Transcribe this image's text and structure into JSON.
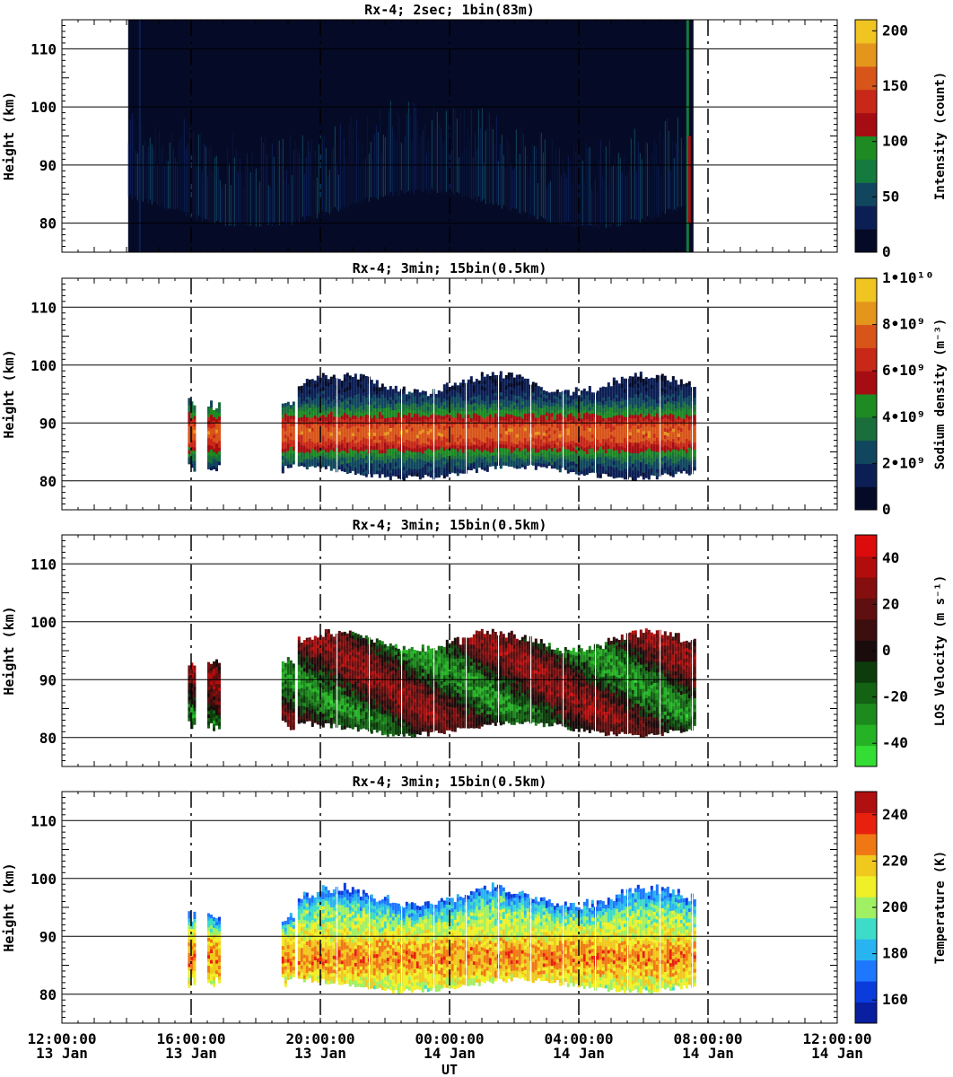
{
  "x_axis": {
    "label": "UT",
    "ticks": [
      {
        "time": "12:00:00",
        "date": "13 Jan"
      },
      {
        "time": "16:00:00",
        "date": "13 Jan"
      },
      {
        "time": "20:00:00",
        "date": "13 Jan"
      },
      {
        "time": "00:00:00",
        "date": "14 Jan"
      },
      {
        "time": "04:00:00",
        "date": "14 Jan"
      },
      {
        "time": "08:00:00",
        "date": "14 Jan"
      },
      {
        "time": "12:00:00",
        "date": "14 Jan"
      }
    ]
  },
  "chart_data": [
    {
      "type": "heatmap",
      "title": "Rx-4;  2sec; 1bin(83m)",
      "ylabel": "Height (km)",
      "ylim": [
        75,
        115
      ],
      "yticks": [
        "80",
        "90",
        "100",
        "110"
      ],
      "xlim_hours": [
        12,
        36
      ],
      "data_extent_hours": [
        14.05,
        31.55
      ],
      "colorbar": {
        "label": "Intensity (count)",
        "range": [
          0,
          210
        ],
        "ticks": [
          "0",
          "50",
          "100",
          "150",
          "200"
        ],
        "colors": [
          "#050b26",
          "#0c1f55",
          "#10475e",
          "#157a3d",
          "#1d8a22",
          "#a50d12",
          "#c72818",
          "#d8551a",
          "#e4961c",
          "#f0c421"
        ]
      }
    },
    {
      "type": "heatmap",
      "title": "Rx-4; 3min; 15bin(0.5km)",
      "ylabel": "Height (km)",
      "ylim": [
        75,
        115
      ],
      "yticks": [
        "80",
        "90",
        "100",
        "110"
      ],
      "xlim_hours": [
        12,
        36
      ],
      "data_extent_hours": [
        [
          15.9,
          16.1
        ],
        [
          16.5,
          16.9
        ],
        [
          18.8,
          19.2
        ],
        [
          19.3,
          31.6
        ]
      ],
      "colorbar": {
        "label": "Sodium density (m⁻³)",
        "range": [
          0,
          10000000000.0
        ],
        "ticks": [
          "0",
          "2•10⁹",
          "4•10⁹",
          "6•10⁹",
          "8•10⁹",
          "1•10¹⁰"
        ],
        "colors": [
          "#050b26",
          "#0c1f55",
          "#10475e",
          "#1a6e3c",
          "#1d8a22",
          "#a50d12",
          "#c72818",
          "#d8551a",
          "#e4961c",
          "#f0c421"
        ]
      }
    },
    {
      "type": "heatmap",
      "title": "Rx-4; 3min; 15bin(0.5km)",
      "ylabel": "Height (km)",
      "ylim": [
        75,
        115
      ],
      "yticks": [
        "80",
        "90",
        "100",
        "110"
      ],
      "xlim_hours": [
        12,
        36
      ],
      "data_extent_hours": [
        [
          15.9,
          16.1
        ],
        [
          16.5,
          16.9
        ],
        [
          18.8,
          19.2
        ],
        [
          19.3,
          31.6
        ]
      ],
      "colorbar": {
        "label": "LOS Velocity (m s⁻¹)",
        "range": [
          -50,
          50
        ],
        "ticks": [
          "-40",
          "-20",
          "0",
          "20",
          "40"
        ],
        "colors": [
          "#33dd33",
          "#25b325",
          "#1d8a1d",
          "#146214",
          "#0c3b0c",
          "#1a0c0c",
          "#3c0e0e",
          "#5f0f0f",
          "#850e0e",
          "#b20d0d",
          "#dd0c0c"
        ]
      }
    },
    {
      "type": "heatmap",
      "title": "Rx-4; 3min; 15bin(0.5km)",
      "ylabel": "Height (km)",
      "ylim": [
        75,
        115
      ],
      "yticks": [
        "80",
        "90",
        "100",
        "110"
      ],
      "xlim_hours": [
        12,
        36
      ],
      "data_extent_hours": [
        [
          15.9,
          16.1
        ],
        [
          16.5,
          16.9
        ],
        [
          18.8,
          19.2
        ],
        [
          19.3,
          31.6
        ]
      ],
      "colorbar": {
        "label": "Temperature (K)",
        "range": [
          150,
          250
        ],
        "ticks": [
          "160",
          "180",
          "200",
          "220",
          "240"
        ],
        "colors": [
          "#0a1ea0",
          "#0a3cdc",
          "#1e78ff",
          "#28b4f0",
          "#3cdcc8",
          "#a0f064",
          "#f0f028",
          "#f0c81e",
          "#f07814",
          "#e8200e",
          "#b01010"
        ]
      }
    }
  ]
}
